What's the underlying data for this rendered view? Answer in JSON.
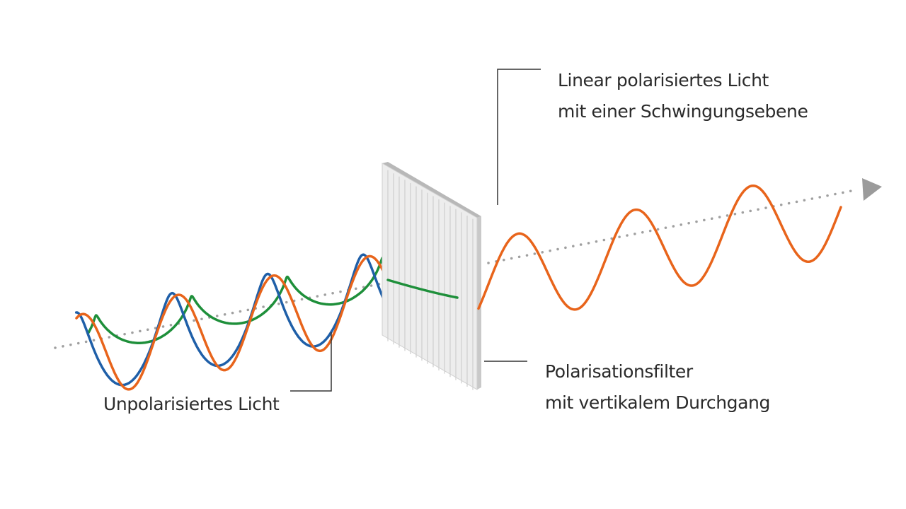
{
  "labels": {
    "linear_line1": "Linear polarisiertes Licht",
    "linear_line2": "mit einer Schwingungsebene",
    "filter_line1": "Polarisationsfilter",
    "filter_line2": "mit vertikalem Durchgang",
    "unpolarized": "Unpolarisiertes Licht"
  },
  "colors": {
    "orange_wave": "#e8641b",
    "blue_wave": "#1f5fa8",
    "green_wave": "#1e8f3a",
    "axis_dots": "#a0a0a0",
    "leader_lines": "#333333",
    "filter_face": "#ececec",
    "filter_edge": "#bdbdbd"
  }
}
